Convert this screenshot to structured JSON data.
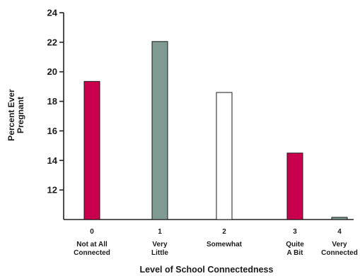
{
  "chart_data": {
    "type": "bar",
    "title": "",
    "xlabel": "Level of School Connectedness",
    "ylabel": [
      "Percent Ever",
      "Pregnant"
    ],
    "ylim": [
      10,
      24
    ],
    "yticks": [
      12,
      14,
      16,
      18,
      20,
      22,
      24
    ],
    "grid": false,
    "categories": [
      {
        "code": "0",
        "label": [
          "Not at All",
          "Connected"
        ],
        "value": 19.35,
        "color": "#c8004e"
      },
      {
        "code": "1",
        "label": [
          "Very",
          "Little"
        ],
        "value": 22.05,
        "color": "#7e9a92"
      },
      {
        "code": "2",
        "label": [
          "Somewhat"
        ],
        "value": 18.6,
        "color": "#ffffff"
      },
      {
        "code": "3",
        "label": [
          "Quite",
          "A Bit"
        ],
        "value": 14.5,
        "color": "#c8004e"
      },
      {
        "code": "4",
        "label": [
          "Very",
          "Connected"
        ],
        "value": 10.15,
        "color": "#7e9a92"
      }
    ]
  }
}
